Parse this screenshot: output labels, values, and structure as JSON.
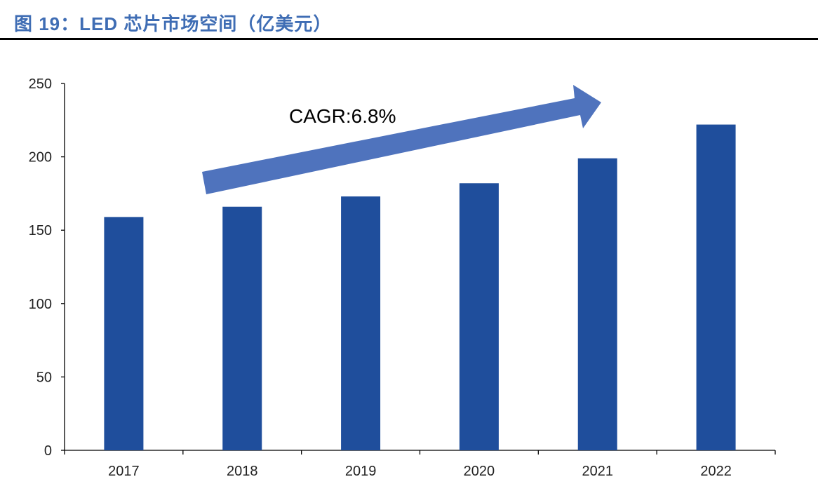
{
  "title": "图 19：LED 芯片市场空间（亿美元）",
  "colors": {
    "title": "#3f6db4",
    "bar": "#1f4e9c",
    "arrow": "#4f73bd"
  },
  "chart_data": {
    "type": "bar",
    "title": "图 19：LED 芯片市场空间（亿美元）",
    "categories": [
      "2017",
      "2018",
      "2019",
      "2020",
      "2021",
      "2022"
    ],
    "values": [
      159,
      166,
      173,
      182,
      199,
      222
    ],
    "ylim": [
      0,
      250
    ],
    "yticks": [
      0,
      50,
      100,
      150,
      200,
      250
    ],
    "xlabel": "",
    "ylabel": "",
    "grid": false,
    "annotations": [
      {
        "text": "CAGR:6.8%",
        "type": "upward-arrow"
      }
    ]
  }
}
